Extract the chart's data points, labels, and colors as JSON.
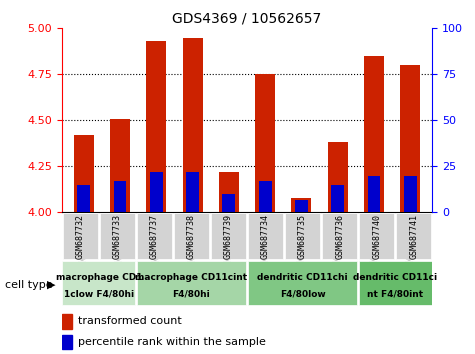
{
  "title": "GDS4369 / 10562657",
  "samples": [
    "GSM687732",
    "GSM687733",
    "GSM687737",
    "GSM687738",
    "GSM687739",
    "GSM687734",
    "GSM687735",
    "GSM687736",
    "GSM687740",
    "GSM687741"
  ],
  "red_values": [
    4.42,
    4.51,
    4.93,
    4.95,
    4.22,
    4.75,
    4.08,
    4.38,
    4.85,
    4.8
  ],
  "blue_values": [
    0.15,
    0.17,
    0.22,
    0.22,
    0.1,
    0.17,
    0.07,
    0.15,
    0.2,
    0.2
  ],
  "ylim": [
    4.0,
    5.0
  ],
  "yticks_left": [
    4.0,
    4.25,
    4.5,
    4.75,
    5.0
  ],
  "yticks_right": [
    0,
    25,
    50,
    75,
    100
  ],
  "cell_type_groups": [
    {
      "label1": "macrophage CD1",
      "label2": "1clow F4/80hi",
      "start": 0,
      "end": 2,
      "color": "#c8e6c9"
    },
    {
      "label1": "macrophage CD11cint",
      "label2": "F4/80hi",
      "start": 2,
      "end": 5,
      "color": "#a5d6a7"
    },
    {
      "label1": "dendritic CD11chi",
      "label2": "F4/80low",
      "start": 5,
      "end": 8,
      "color": "#80c784"
    },
    {
      "label1": "dendritic CD11ci",
      "label2": "nt F4/80int",
      "start": 8,
      "end": 10,
      "color": "#66bb6a"
    }
  ],
  "red_color": "#cc2200",
  "blue_color": "#0000cc",
  "bar_width": 0.55,
  "blue_bar_width": 0.35,
  "base_value": 4.0
}
